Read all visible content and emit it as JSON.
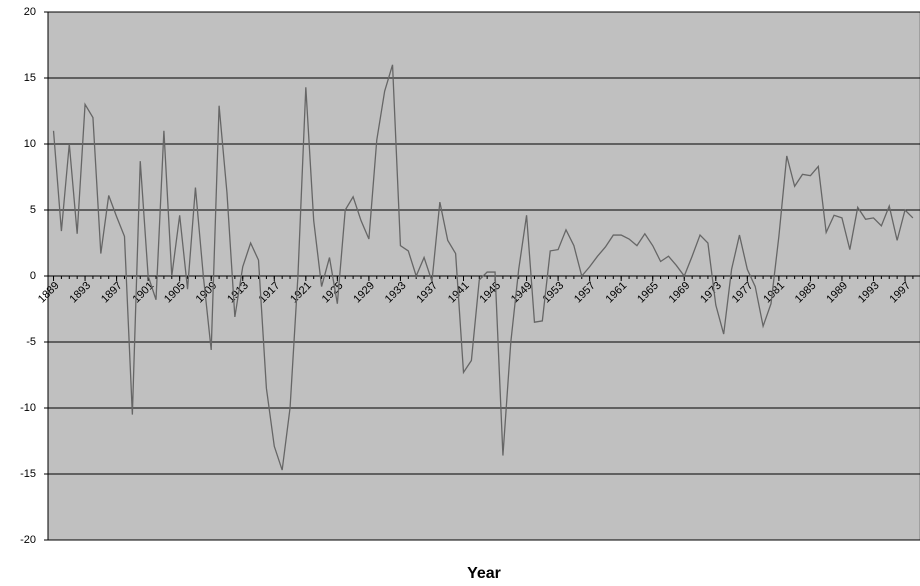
{
  "chart_data": {
    "type": "line",
    "x_label": "Year",
    "x": [
      1889,
      1890,
      1891,
      1892,
      1893,
      1894,
      1895,
      1896,
      1897,
      1898,
      1899,
      1900,
      1901,
      1902,
      1903,
      1904,
      1905,
      1906,
      1907,
      1908,
      1909,
      1910,
      1911,
      1912,
      1913,
      1914,
      1915,
      1916,
      1917,
      1918,
      1919,
      1920,
      1921,
      1922,
      1923,
      1924,
      1925,
      1926,
      1927,
      1928,
      1929,
      1930,
      1931,
      1932,
      1933,
      1934,
      1935,
      1936,
      1937,
      1938,
      1939,
      1940,
      1941,
      1942,
      1943,
      1944,
      1945,
      1946,
      1947,
      1948,
      1949,
      1950,
      1951,
      1952,
      1953,
      1954,
      1955,
      1956,
      1957,
      1958,
      1959,
      1960,
      1961,
      1962,
      1963,
      1964,
      1965,
      1966,
      1967,
      1968,
      1969,
      1970,
      1971,
      1972,
      1973,
      1974,
      1975,
      1976,
      1977,
      1978,
      1979,
      1980,
      1981,
      1982,
      1983,
      1984,
      1985,
      1986,
      1987,
      1988,
      1989,
      1990,
      1991,
      1992,
      1993,
      1994,
      1995,
      1996,
      1997,
      1998
    ],
    "values": [
      11,
      3.4,
      10,
      3.2,
      13,
      12,
      1.7,
      6.1,
      4.5,
      3,
      -10.5,
      8.7,
      0,
      -1.8,
      11,
      0,
      4.6,
      -1,
      6.7,
      0,
      -5.6,
      12.9,
      6.3,
      -3.1,
      0.7,
      2.5,
      1.2,
      -8.5,
      -12.9,
      -14.7,
      -10,
      0,
      14.3,
      4.2,
      -0.8,
      1.4,
      -2.1,
      5,
      6,
      4.2,
      2.8,
      10.3,
      14,
      16,
      2.3,
      1.9,
      0,
      1.4,
      -0.4,
      5.6,
      2.7,
      1.7,
      -7.3,
      -6.4,
      -0.3,
      0.3,
      0.3,
      -13.6,
      -5,
      0.5,
      4.6,
      -3.5,
      -3.4,
      1.9,
      2,
      3.5,
      2.3,
      0,
      0.7,
      1.5,
      2.2,
      3.1,
      3.1,
      2.8,
      2.3,
      3.2,
      2.3,
      1.1,
      1.5,
      0.8,
      0,
      1.5,
      3.1,
      2.5,
      -2.2,
      -4.4,
      0.5,
      3.1,
      0.5,
      -0.8,
      -3.8,
      -2.1,
      3,
      9.1,
      6.8,
      7.7,
      7.6,
      8.3,
      3.3,
      4.6,
      4.4,
      2,
      5.2,
      4.3,
      4.4,
      3.8,
      5.3,
      2.7,
      5,
      4.4
    ],
    "color": "#666666",
    "background": "#c0c0c0",
    "xlim": [
      1888.3,
      1998.9
    ],
    "xticks": [
      1889,
      1893,
      1897,
      1901,
      1905,
      1909,
      1913,
      1917,
      1921,
      1925,
      1929,
      1933,
      1937,
      1941,
      1945,
      1949,
      1953,
      1957,
      1961,
      1965,
      1969,
      1973,
      1977,
      1981,
      1985,
      1989,
      1993,
      1997
    ],
    "ylim": [
      -20,
      20
    ],
    "yticks": [
      -20,
      -15,
      -10,
      -5,
      0,
      5,
      10,
      15,
      20
    ],
    "grid": true
  }
}
